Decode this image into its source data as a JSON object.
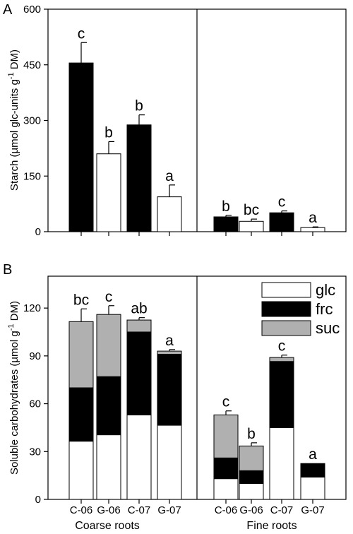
{
  "colors": {
    "filled": "#000000",
    "open": "#ffffff",
    "suc": "#b0b0b0",
    "stroke": "#000000"
  },
  "chart_data": [
    {
      "panel": "A",
      "type": "bar",
      "ylabel_main": "Starch (µmol glc-units g",
      "ylabel_sup": "-1",
      "ylabel_end": " DM)",
      "ylim": [
        0,
        600
      ],
      "yticks": [
        "0",
        "150",
        "300",
        "450",
        "600"
      ],
      "bars": [
        {
          "value": 455,
          "error": 55,
          "fill": "filled",
          "sig": "c"
        },
        {
          "value": 210,
          "error": 33,
          "fill": "open",
          "sig": "b"
        },
        {
          "value": 288,
          "error": 27,
          "fill": "filled",
          "sig": "b"
        },
        {
          "value": 94,
          "error": 32,
          "fill": "open",
          "sig": "a"
        },
        {
          "value": 40,
          "error": 4,
          "fill": "filled",
          "sig": "b"
        },
        {
          "value": 28,
          "error": 6,
          "fill": "open",
          "sig": "bc"
        },
        {
          "value": 51,
          "error": 5,
          "fill": "filled",
          "sig": "c"
        },
        {
          "value": 11,
          "error": 2,
          "fill": "open",
          "sig": "a"
        }
      ]
    },
    {
      "panel": "B",
      "type": "bar",
      "stacked": true,
      "ylabel_main": "Soluble carbohydrates (µmol g",
      "ylabel_sup": "-1",
      "ylabel_end": " DM)",
      "ylim": [
        0,
        140
      ],
      "yticks": [
        "0",
        "30",
        "60",
        "90",
        "120"
      ],
      "categories": [
        "C-06",
        "G-06",
        "C-07",
        "G-07",
        "C-06",
        "G-06",
        "C-07",
        "G-07"
      ],
      "groups": [
        "Coarse roots",
        "Fine roots"
      ],
      "series": [
        {
          "name": "glc",
          "fill": "open",
          "values": [
            36.5,
            40.5,
            53,
            46.5,
            13,
            10,
            45,
            14
          ],
          "errors": [
            9.5,
            6.5,
            4,
            4.5,
            1.5,
            2,
            3.5,
            2
          ]
        },
        {
          "name": "frc",
          "fill": "filled",
          "values": [
            33.5,
            36.5,
            52,
            44.5,
            13,
            8,
            41.5,
            8.5
          ],
          "errors": [
            8,
            7,
            0,
            0,
            1.5,
            1,
            0,
            0
          ]
        },
        {
          "name": "suc",
          "fill": "suc",
          "values": [
            41.5,
            39,
            7.5,
            2,
            27,
            15.5,
            2.5,
            0
          ],
          "errors": [
            8,
            5.5,
            1.5,
            1,
            2.5,
            2,
            1.5,
            0
          ]
        }
      ],
      "sig": [
        "bc",
        "c",
        "ab",
        "a",
        "c",
        "b",
        "c",
        "a"
      ]
    }
  ]
}
